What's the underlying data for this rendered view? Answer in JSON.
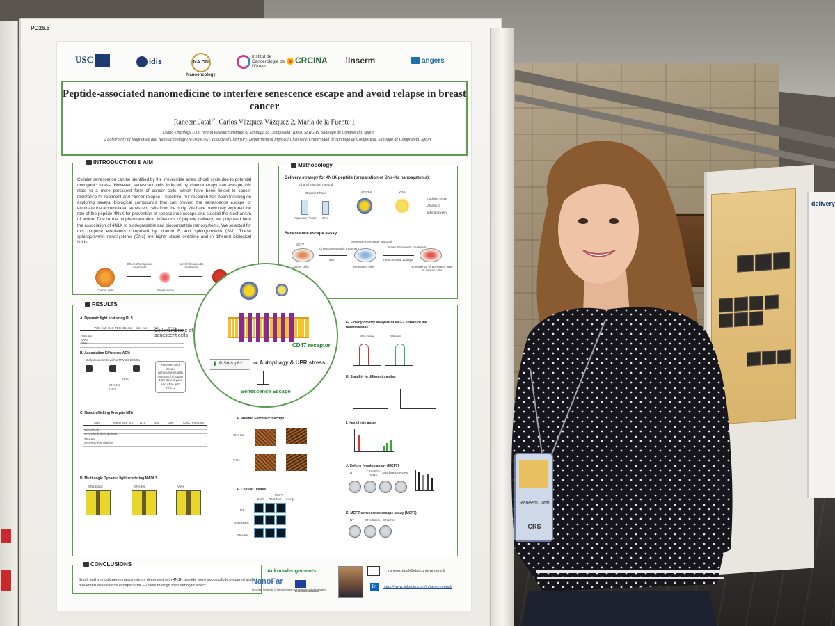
{
  "board": {
    "id": "PO26.5"
  },
  "logos": {
    "usc": "USC",
    "idis": "idis",
    "nano": "Nanooncology",
    "ico": "Institut de Cancérologie de l'Ouest",
    "crcina": "CRCINA",
    "inserm": "Inserm",
    "angers": "angers"
  },
  "poster": {
    "title": "Peptide-associated nanomedicine to interfere senescence escape and avoid relapse in breast cancer",
    "authors": {
      "first": "Raneem Jatal",
      "first_mark": "1*",
      "rest": ", Carlos Vázquez Vázquez 2, María de la Fuente 1"
    },
    "affiliations": [
      "1Nano-Oncology Unit, Health Research Institute of Santiago de Compostela (IDIS), SERGAS, Santiago de Compostela, Spain",
      "2 Laboratory of Magnetism and Nanotechnology (NANOMAG), Faculty of Chemistry, Department of Physical Chemistry, Universidad de Santiago de Compostela, Santiago de Compostela, Spain."
    ],
    "intro": {
      "heading": "INTRODUCTION & AIM",
      "body": "Cellular senescence can be identified by the irreversible arrest of cell cycle due to potential oncogenic stress. However, senescent cells induced by chemotherapy can escape this state to a more persistent form of cancer cells, which have been linked to cancer resistance to treatment and cancer relapse. Therefore, our research has been focusing on exploring several biological compounds that can prevent the senescence escape or eliminate the accumulated senescent cells from the body. We have previously explored the role of the peptide 4N1K for prevention of senescence escape and studied the mechanism of action. Due to the biopharmaceutical limitations of peptide delivery, we proposed here the association of 4N1K to biodegradable and biocompatible nanosystems. We selected for this purpose emulsions composed by vitamin E and sphingomyelin (SM). These sphingomyelin nanosystems (SNs) are highly stable overtime and in different biological fluids.",
      "cells": [
        "Cancer cells",
        "Senescence",
        "Persistent cancer relapse"
      ],
      "steps": [
        "Chemotherapeutic treatment",
        "Novel therapeutic treatment"
      ]
    },
    "methodology": {
      "heading": "Methodology",
      "strategy": "Delivery strategy for 4N1K peptide (preparation of SNs-Ks nanosystems):",
      "method": "Ethanol injection method",
      "phases": [
        "Organic Phase",
        "Aqueous Phase",
        "SNs"
      ],
      "products": [
        "SNs-Ks",
        "V-Ks"
      ],
      "legend": [
        "modified 4N1K",
        "Vitamin E",
        "sphingomyelin"
      ],
      "assay_title": "Senescence escape assay",
      "assay_protocol": "Senescence escape protocol",
      "assay_cells": [
        "MCF7",
        "Cancer cells",
        "Senescent cells",
        "Emergence of persistent form of cancer cells"
      ],
      "assay_steps": [
        "Chemotherapeutic treatment",
        "96h",
        "Novel therapeutic treatment",
        "Fresh media: 10days"
      ]
    },
    "center": {
      "membrane": "Cell membrane of senescent cells",
      "receptor": "CD47 receptor",
      "pathway_a": "P-S6 & p62",
      "pathway_b": "Autophagy & UPR stress",
      "outcome": "Senescence Escape"
    },
    "results": {
      "heading": "RESULTS",
      "a": "A. Dynamic light scattering DLS",
      "a_header": [
        "VitE: SM: C18-PEG-4N1Ks",
        "Size nm",
        "PdI",
        "ZP mV"
      ],
      "a_rows": [
        "SNs-Ks",
        "V-Ks",
        "SNs"
      ],
      "b": "B. Association Efficiency AE%",
      "b_note": "Dialysis cassette with a MWCO 20 kDa",
      "b_box": "Recover and break nanosystems with Methanol in ration 1:20 Detect yield and AE% with HPLC",
      "b_table": [
        "AE%",
        "SNs-Ks",
        "V-Ks"
      ],
      "c": "C. Nanotrafficking Analysis NTA",
      "c_header": [
        "SNs",
        "Mean size nm",
        "D10",
        "D50",
        "D90",
        "Conc. Particles"
      ],
      "c_rows": [
        "SNs-Blank",
        "SNs-Blank after dialysis",
        "SNs-Ks",
        "SNs-Ks After dialysis"
      ],
      "d": "D. Multi-angle Dynamic light scattering MADLS",
      "d_labels": [
        "SNs-blank",
        "SNs-Ks",
        "V-Ks"
      ],
      "e": "E. Atomic Force Microscopy",
      "e_labels": [
        "SNs-Ks",
        "V-Ks"
      ],
      "f": "F. Cellular uptake",
      "f_header": [
        "MCF7",
        "DAPI",
        "TopFluor",
        "merge"
      ],
      "f_rows": [
        "NT",
        "SNs-blank",
        "SNs-Ks"
      ],
      "g": "G. Flowcytometry analysis of MCF7 uptake of the nanosystems",
      "g_labels": [
        "SNs-blank",
        "SNs-Ks"
      ],
      "h": "H. Stability in different medias",
      "i": "I. Hemolysis assay",
      "j": "J. Colony forming assay (MCF7)",
      "j_labels": [
        "NT",
        "C18-PEG-4N1K",
        "SNs-blank",
        "SNs-Ks"
      ],
      "k": "K. MCF7 senescence escape assay (MCF7)",
      "k_labels": [
        "NT",
        "SNs-blank",
        "SNs-Ks"
      ]
    },
    "conclusions": {
      "heading": "CONCLUSIONS",
      "body": "Small and monodisperse nanosystems decorated with 4N1K peptide were successfully prepared and prevented senescence escape in MCF7 cells through their senolytic effect."
    },
    "acknowledgements": {
      "heading": "Acknowledgements",
      "nanofar": "NanoFar",
      "nanofar_sub": "European Doctorate in Nanomedicine and pharmaceutical innovation",
      "erasmus": "ERASMUS MUNDUS"
    },
    "contact": {
      "email": "raneem.jatal@etud.univ-angers.fr",
      "linkedin": "https://www.linkedin.com/in/raneem-jatal/"
    }
  },
  "right_poster": {
    "title": "delivery syst"
  },
  "badge": {
    "name": "Raneem Jatal",
    "org": "CRS"
  },
  "colors": {
    "accent_green": "#5a9e4e",
    "title_navy": "#1f3b73",
    "shirt": "#16161c",
    "hair": "#8a5a30"
  }
}
